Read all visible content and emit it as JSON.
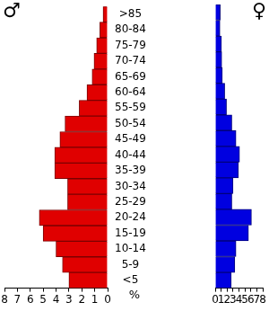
{
  "chart_data": {
    "type": "bar",
    "orientation": "horizontal",
    "categories": [
      ">85",
      "80-84",
      "75-79",
      "70-74",
      "65-69",
      "60-64",
      "55-59",
      "50-54",
      "45-49",
      "40-44",
      "35-39",
      "30-34",
      "25-29",
      "20-24",
      "15-19",
      "10-14",
      "5-9",
      "<5"
    ],
    "series": [
      {
        "name": "♂",
        "color": "#e00000",
        "values": [
          0.35,
          0.6,
          0.85,
          1.05,
          1.2,
          1.6,
          2.2,
          3.3,
          3.7,
          4.1,
          4.1,
          3.1,
          3.1,
          5.3,
          5.0,
          4.0,
          3.5,
          3.0
        ]
      },
      {
        "name": "♀",
        "color": "#0000e0",
        "values": [
          0.85,
          0.8,
          1.05,
          1.1,
          1.2,
          1.6,
          1.9,
          2.8,
          3.5,
          4.1,
          3.9,
          3.0,
          2.8,
          6.1,
          5.6,
          3.5,
          3.3,
          2.7
        ]
      }
    ],
    "xlim": [
      0,
      8
    ],
    "xticks": [
      0,
      1,
      2,
      3,
      4,
      5,
      6,
      7,
      8
    ],
    "xlabel": "%",
    "grid": false
  }
}
